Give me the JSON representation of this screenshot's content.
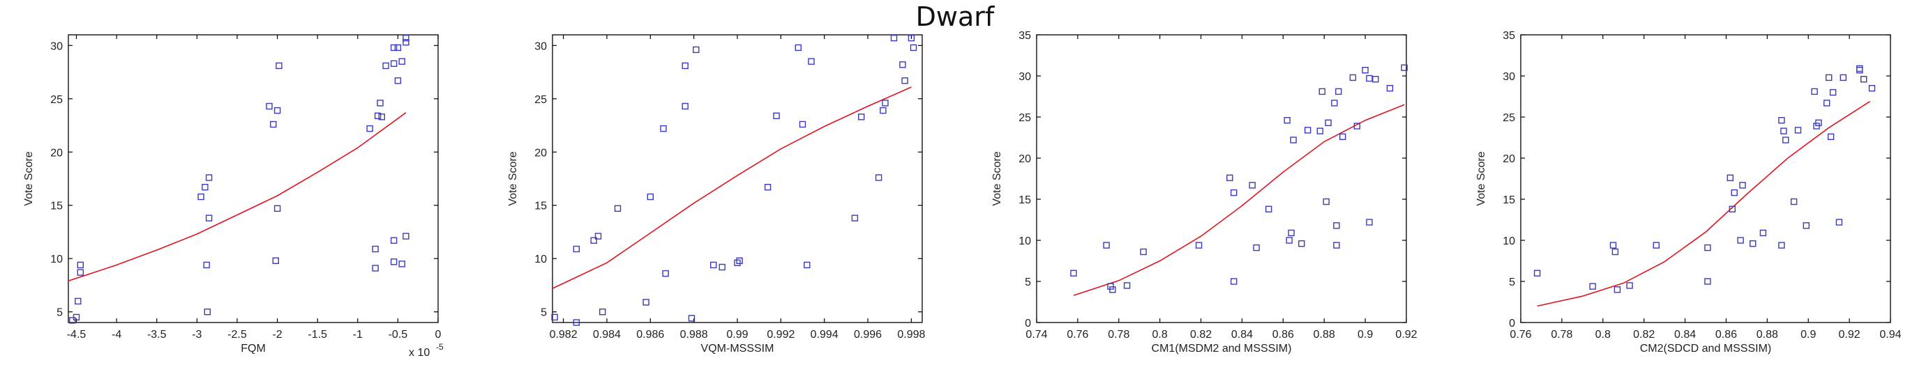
{
  "figure_title": "Dwarf",
  "colors": {
    "marker": "#3a3abf",
    "fit_line": "#e0141e"
  },
  "chart_data": [
    {
      "type": "scatter",
      "xlabel": "FQM",
      "ylabel": "Vote Score",
      "x_multiplier_label": "x 10",
      "x_multiplier_exp": "-5",
      "xlim": [
        -4.6,
        0
      ],
      "ylim": [
        4,
        31
      ],
      "xticks": [
        -4.5,
        -4,
        -3.5,
        -3,
        -2.5,
        -2,
        -1.5,
        -1,
        -0.5,
        0
      ],
      "xtick_labels": [
        "-4.5",
        "-4",
        "-3.5",
        "-3",
        "-2.5",
        "-2",
        "-1.5",
        "-1",
        "-0.5",
        "0"
      ],
      "yticks": [
        5,
        10,
        15,
        20,
        25,
        30
      ],
      "ytick_labels": [
        "5",
        "10",
        "15",
        "20",
        "25",
        "30"
      ],
      "points": [
        [
          -4.55,
          4.2
        ],
        [
          -4.5,
          4.5
        ],
        [
          -4.48,
          6.0
        ],
        [
          -4.45,
          8.7
        ],
        [
          -4.45,
          9.4
        ],
        [
          -2.95,
          15.8
        ],
        [
          -2.9,
          16.7
        ],
        [
          -2.85,
          17.6
        ],
        [
          -2.85,
          13.8
        ],
        [
          -2.88,
          9.4
        ],
        [
          -2.87,
          5.0
        ],
        [
          -2.1,
          24.3
        ],
        [
          -2.05,
          22.6
        ],
        [
          -2.0,
          23.9
        ],
        [
          -1.98,
          28.1
        ],
        [
          -2.0,
          14.7
        ],
        [
          -2.02,
          9.8
        ],
        [
          -0.85,
          22.2
        ],
        [
          -0.75,
          23.4
        ],
        [
          -0.72,
          24.6
        ],
        [
          -0.7,
          23.3
        ],
        [
          -0.65,
          28.1
        ],
        [
          -0.55,
          29.8
        ],
        [
          -0.55,
          28.3
        ],
        [
          -0.5,
          29.8
        ],
        [
          -0.5,
          26.7
        ],
        [
          -0.45,
          28.5
        ],
        [
          -0.4,
          30.7
        ],
        [
          -0.4,
          30.3
        ],
        [
          -0.78,
          10.9
        ],
        [
          -0.78,
          9.1
        ],
        [
          -0.55,
          11.7
        ],
        [
          -0.55,
          9.7
        ],
        [
          -0.45,
          9.5
        ],
        [
          -0.4,
          12.1
        ]
      ],
      "fit": [
        [
          -4.6,
          7.9
        ],
        [
          -4.0,
          9.4
        ],
        [
          -3.5,
          10.8
        ],
        [
          -3.0,
          12.3
        ],
        [
          -2.5,
          14.1
        ],
        [
          -2.0,
          15.9
        ],
        [
          -1.5,
          18.1
        ],
        [
          -1.0,
          20.4
        ],
        [
          -0.4,
          23.7
        ]
      ]
    },
    {
      "type": "scatter",
      "xlabel": "VQM-MSSSIM",
      "ylabel": "Vote Score",
      "xlim": [
        0.9815,
        0.9985
      ],
      "ylim": [
        4,
        31
      ],
      "xticks": [
        0.982,
        0.984,
        0.986,
        0.988,
        0.99,
        0.992,
        0.994,
        0.996,
        0.998
      ],
      "xtick_labels": [
        "0.982",
        "0.984",
        "0.986",
        "0.988",
        "0.99",
        "0.992",
        "0.994",
        "0.996",
        "0.998"
      ],
      "yticks": [
        5,
        10,
        15,
        20,
        25,
        30
      ],
      "ytick_labels": [
        "5",
        "10",
        "15",
        "20",
        "25",
        "30"
      ],
      "points": [
        [
          0.9816,
          4.5
        ],
        [
          0.9826,
          4.0
        ],
        [
          0.9826,
          10.9
        ],
        [
          0.9834,
          11.7
        ],
        [
          0.9836,
          12.1
        ],
        [
          0.9838,
          5.0
        ],
        [
          0.9845,
          14.7
        ],
        [
          0.9858,
          5.9
        ],
        [
          0.986,
          15.8
        ],
        [
          0.9866,
          22.2
        ],
        [
          0.9867,
          8.6
        ],
        [
          0.9876,
          24.3
        ],
        [
          0.9876,
          28.1
        ],
        [
          0.9879,
          4.4
        ],
        [
          0.9881,
          29.6
        ],
        [
          0.9889,
          9.4
        ],
        [
          0.9893,
          9.2
        ],
        [
          0.99,
          9.6
        ],
        [
          0.9901,
          9.8
        ],
        [
          0.9914,
          16.7
        ],
        [
          0.9918,
          23.4
        ],
        [
          0.9928,
          29.8
        ],
        [
          0.993,
          22.6
        ],
        [
          0.9932,
          9.4
        ],
        [
          0.9934,
          28.5
        ],
        [
          0.9954,
          13.8
        ],
        [
          0.9957,
          23.3
        ],
        [
          0.9965,
          17.6
        ],
        [
          0.9967,
          23.9
        ],
        [
          0.9968,
          24.6
        ],
        [
          0.9972,
          30.7
        ],
        [
          0.9976,
          28.2
        ],
        [
          0.9977,
          26.7
        ],
        [
          0.998,
          30.7
        ],
        [
          0.9981,
          29.8
        ]
      ],
      "fit": [
        [
          0.9815,
          7.2
        ],
        [
          0.984,
          9.6
        ],
        [
          0.986,
          12.4
        ],
        [
          0.988,
          15.2
        ],
        [
          0.99,
          17.8
        ],
        [
          0.992,
          20.3
        ],
        [
          0.994,
          22.4
        ],
        [
          0.996,
          24.3
        ],
        [
          0.998,
          26.1
        ]
      ]
    },
    {
      "type": "scatter",
      "xlabel": "CM1(MSDM2 and MSSSIM)",
      "ylabel": "Vote Score",
      "xlim": [
        0.74,
        0.92
      ],
      "ylim": [
        0,
        35
      ],
      "xticks": [
        0.74,
        0.76,
        0.78,
        0.8,
        0.82,
        0.84,
        0.86,
        0.88,
        0.9,
        0.92
      ],
      "xtick_labels": [
        "0.74",
        "0.76",
        "0.78",
        "0.8",
        "0.82",
        "0.84",
        "0.86",
        "0.88",
        "0.9",
        "0.92"
      ],
      "yticks": [
        0,
        5,
        10,
        15,
        20,
        25,
        30,
        35
      ],
      "ytick_labels": [
        "0",
        "5",
        "10",
        "15",
        "20",
        "25",
        "30",
        "35"
      ],
      "points": [
        [
          0.758,
          6.0
        ],
        [
          0.774,
          9.4
        ],
        [
          0.776,
          4.4
        ],
        [
          0.777,
          4.0
        ],
        [
          0.784,
          4.5
        ],
        [
          0.792,
          8.6
        ],
        [
          0.819,
          9.4
        ],
        [
          0.834,
          17.6
        ],
        [
          0.836,
          15.8
        ],
        [
          0.836,
          5.0
        ],
        [
          0.845,
          16.7
        ],
        [
          0.847,
          9.1
        ],
        [
          0.853,
          13.8
        ],
        [
          0.862,
          24.6
        ],
        [
          0.863,
          10.0
        ],
        [
          0.865,
          22.2
        ],
        [
          0.864,
          10.9
        ],
        [
          0.869,
          9.6
        ],
        [
          0.872,
          23.4
        ],
        [
          0.878,
          23.3
        ],
        [
          0.879,
          28.1
        ],
        [
          0.881,
          14.7
        ],
        [
          0.882,
          24.3
        ],
        [
          0.885,
          26.7
        ],
        [
          0.887,
          28.1
        ],
        [
          0.886,
          11.8
        ],
        [
          0.886,
          9.4
        ],
        [
          0.889,
          22.6
        ],
        [
          0.894,
          29.8
        ],
        [
          0.896,
          23.9
        ],
        [
          0.9,
          30.7
        ],
        [
          0.902,
          29.7
        ],
        [
          0.902,
          12.2
        ],
        [
          0.905,
          29.6
        ],
        [
          0.912,
          28.5
        ],
        [
          0.919,
          31.0
        ]
      ],
      "fit": [
        [
          0.758,
          3.3
        ],
        [
          0.78,
          5.1
        ],
        [
          0.8,
          7.5
        ],
        [
          0.82,
          10.5
        ],
        [
          0.84,
          14.2
        ],
        [
          0.86,
          18.3
        ],
        [
          0.88,
          22.0
        ],
        [
          0.9,
          24.6
        ],
        [
          0.919,
          26.5
        ]
      ]
    },
    {
      "type": "scatter",
      "xlabel": "CM2(SDCD and MSSSIM)",
      "ylabel": "Vote Score",
      "xlim": [
        0.76,
        0.94
      ],
      "ylim": [
        0,
        35
      ],
      "xticks": [
        0.76,
        0.78,
        0.8,
        0.82,
        0.84,
        0.86,
        0.88,
        0.9,
        0.92,
        0.94
      ],
      "xtick_labels": [
        "0.76",
        "0.78",
        "0.8",
        "0.82",
        "0.84",
        "0.86",
        "0.88",
        "0.9",
        "0.92",
        "0.94"
      ],
      "yticks": [
        0,
        5,
        10,
        15,
        20,
        25,
        30,
        35
      ],
      "ytick_labels": [
        "0",
        "5",
        "10",
        "15",
        "20",
        "25",
        "30",
        "35"
      ],
      "points": [
        [
          0.768,
          6.0
        ],
        [
          0.795,
          4.4
        ],
        [
          0.805,
          9.4
        ],
        [
          0.806,
          8.6
        ],
        [
          0.807,
          4.0
        ],
        [
          0.813,
          4.5
        ],
        [
          0.826,
          9.4
        ],
        [
          0.851,
          5.0
        ],
        [
          0.851,
          9.1
        ],
        [
          0.862,
          17.6
        ],
        [
          0.864,
          15.8
        ],
        [
          0.863,
          13.8
        ],
        [
          0.867,
          10.0
        ],
        [
          0.868,
          16.7
        ],
        [
          0.873,
          9.6
        ],
        [
          0.878,
          10.9
        ],
        [
          0.887,
          24.6
        ],
        [
          0.888,
          23.3
        ],
        [
          0.889,
          22.2
        ],
        [
          0.887,
          9.4
        ],
        [
          0.893,
          14.7
        ],
        [
          0.895,
          23.4
        ],
        [
          0.899,
          11.8
        ],
        [
          0.903,
          28.1
        ],
        [
          0.905,
          24.3
        ],
        [
          0.904,
          23.9
        ],
        [
          0.909,
          26.7
        ],
        [
          0.91,
          29.8
        ],
        [
          0.911,
          22.6
        ],
        [
          0.912,
          28.0
        ],
        [
          0.915,
          12.2
        ],
        [
          0.917,
          29.8
        ],
        [
          0.925,
          30.7
        ],
        [
          0.925,
          30.9
        ],
        [
          0.927,
          29.6
        ],
        [
          0.931,
          28.5
        ]
      ],
      "fit": [
        [
          0.768,
          2.0
        ],
        [
          0.79,
          3.2
        ],
        [
          0.81,
          4.8
        ],
        [
          0.83,
          7.4
        ],
        [
          0.85,
          11.0
        ],
        [
          0.87,
          15.6
        ],
        [
          0.89,
          20.0
        ],
        [
          0.91,
          23.7
        ],
        [
          0.93,
          26.9
        ]
      ]
    }
  ]
}
